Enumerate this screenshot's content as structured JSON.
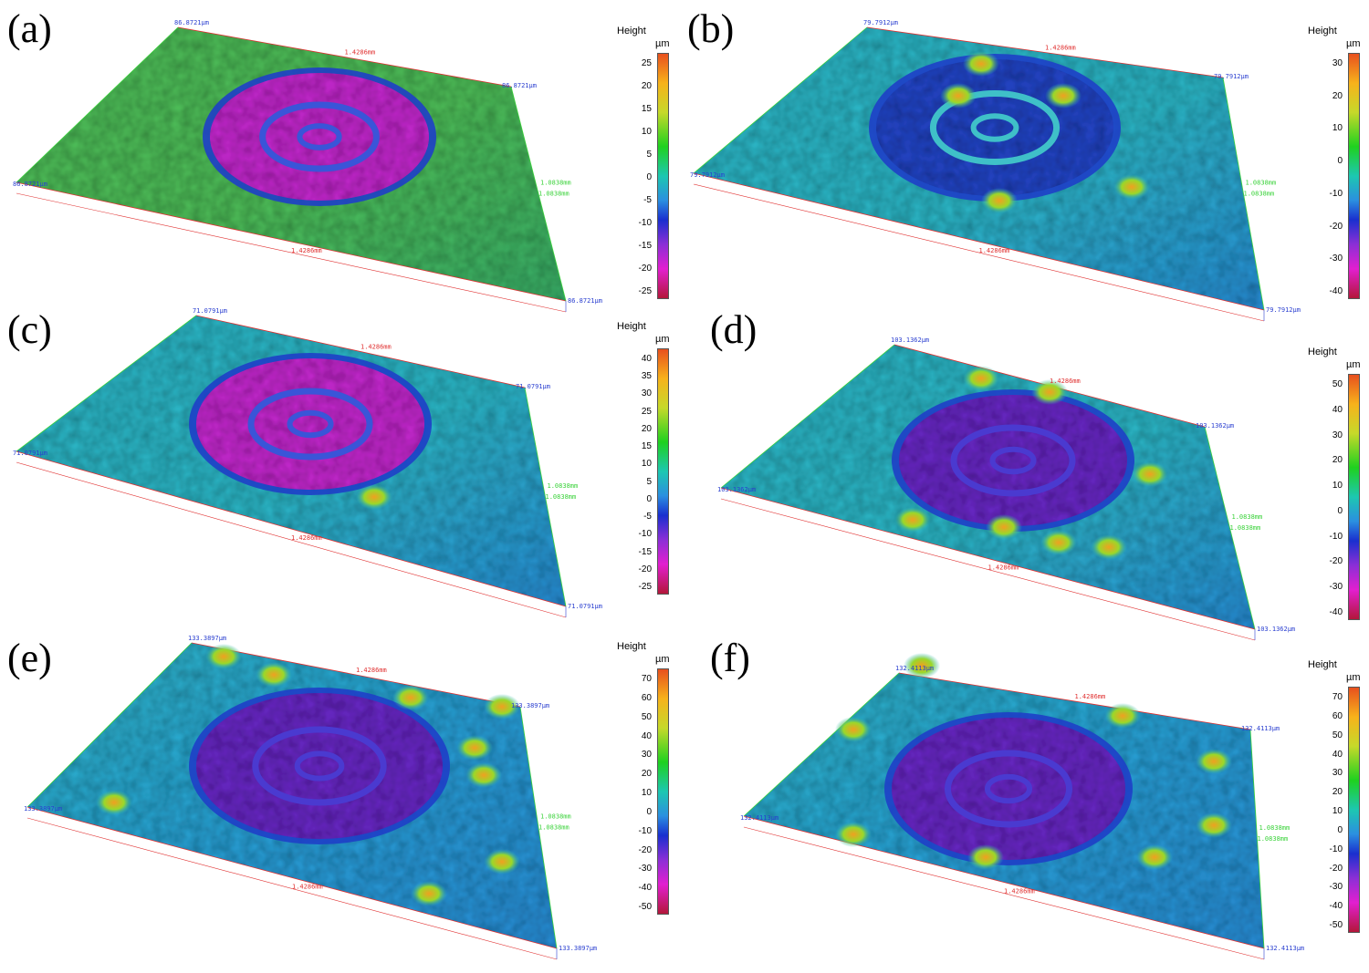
{
  "panels": [
    {
      "id": "a",
      "label": "(a)",
      "legend_title": "Height",
      "legend_unit": "µm",
      "ticks": [
        "25",
        "20",
        "15",
        "10",
        "5",
        "0",
        "-5",
        "-10",
        "-15",
        "-20",
        "-25"
      ],
      "dims": {
        "height_top": "86.8721µm",
        "height_right": "86.8721µm",
        "height_bottom": "86.8721µm",
        "height_left": "86.8721µm",
        "x_top": "1.4286mm",
        "x_bottom": "1.4286mm",
        "y_right": "1.0838mm",
        "y_right2": "1.0838mm"
      }
    },
    {
      "id": "b",
      "label": "(b)",
      "legend_title": "Height",
      "legend_unit": "µm",
      "ticks": [
        "30",
        "20",
        "10",
        "0",
        "-10",
        "-20",
        "-30",
        "-40"
      ],
      "dims": {
        "height_top": "79.7912µm",
        "height_right": "79.7912µm",
        "height_bottom": "79.7912µm",
        "height_left": "79.7912µm",
        "x_top": "1.4286mm",
        "x_bottom": "1.4286mm",
        "y_right": "1.0838mm",
        "y_right2": "1.0838mm"
      }
    },
    {
      "id": "c",
      "label": "(c)",
      "legend_title": "Height",
      "legend_unit": "µm",
      "ticks": [
        "40",
        "35",
        "30",
        "25",
        "20",
        "15",
        "10",
        "5",
        "0",
        "-5",
        "-10",
        "-15",
        "-20",
        "-25"
      ],
      "dims": {
        "height_top": "71.0791µm",
        "height_right": "71.0791µm",
        "height_bottom": "71.0791µm",
        "height_left": "71.0791µm",
        "x_top": "1.4286mm",
        "x_bottom": "1.4286mm",
        "y_right": "1.0838mm",
        "y_right2": "1.0838mm"
      }
    },
    {
      "id": "d",
      "label": "(d)",
      "legend_title": "Height",
      "legend_unit": "µm",
      "ticks": [
        "50",
        "40",
        "30",
        "20",
        "10",
        "0",
        "-10",
        "-20",
        "-30",
        "-40"
      ],
      "dims": {
        "height_top": "103.1362µm",
        "height_right": "103.1362µm",
        "height_bottom": "103.1362µm",
        "height_left": "103.1362µm",
        "x_top": "1.4286mm",
        "x_bottom": "1.4286mm",
        "y_right": "1.0838mm",
        "y_right2": "1.0838mm"
      }
    },
    {
      "id": "e",
      "label": "(e)",
      "legend_title": "Height",
      "legend_unit": "µm",
      "ticks": [
        "70",
        "60",
        "50",
        "40",
        "30",
        "20",
        "10",
        "0",
        "-10",
        "-20",
        "-30",
        "-40",
        "-50"
      ],
      "dims": {
        "height_top": "133.3897µm",
        "height_right": "133.3897µm",
        "height_bottom": "133.3897µm",
        "height_left": "133.3897µm",
        "x_top": "1.4286mm",
        "x_bottom": "1.4286mm",
        "y_right": "1.0838mm",
        "y_right2": "1.0838mm"
      }
    },
    {
      "id": "f",
      "label": "(f)",
      "legend_title": "Height",
      "legend_unit": "µm",
      "ticks": [
        "70",
        "60",
        "50",
        "40",
        "30",
        "20",
        "10",
        "0",
        "-10",
        "-20",
        "-30",
        "-40",
        "-50"
      ],
      "dims": {
        "height_top": "132.4113µm",
        "height_right": "132.4113µm",
        "height_bottom": "132.4113µm",
        "height_left": "132.4113µm",
        "x_top": "1.4286mm",
        "x_bottom": "1.4286mm",
        "y_right": "1.0838mm",
        "y_right2": "1.0838mm"
      }
    }
  ],
  "colors": {
    "surface_green": "#4fbf5a",
    "surface_cyan": "#2fb8c8",
    "surface_blue": "#2747c9",
    "crater_magenta": "#c62ad0",
    "crater_purple": "#6a2bc8",
    "peak_orange": "#f0a020",
    "box_red": "#e03030",
    "box_green": "#3ad23a",
    "box_blue": "#2a3fd0"
  }
}
